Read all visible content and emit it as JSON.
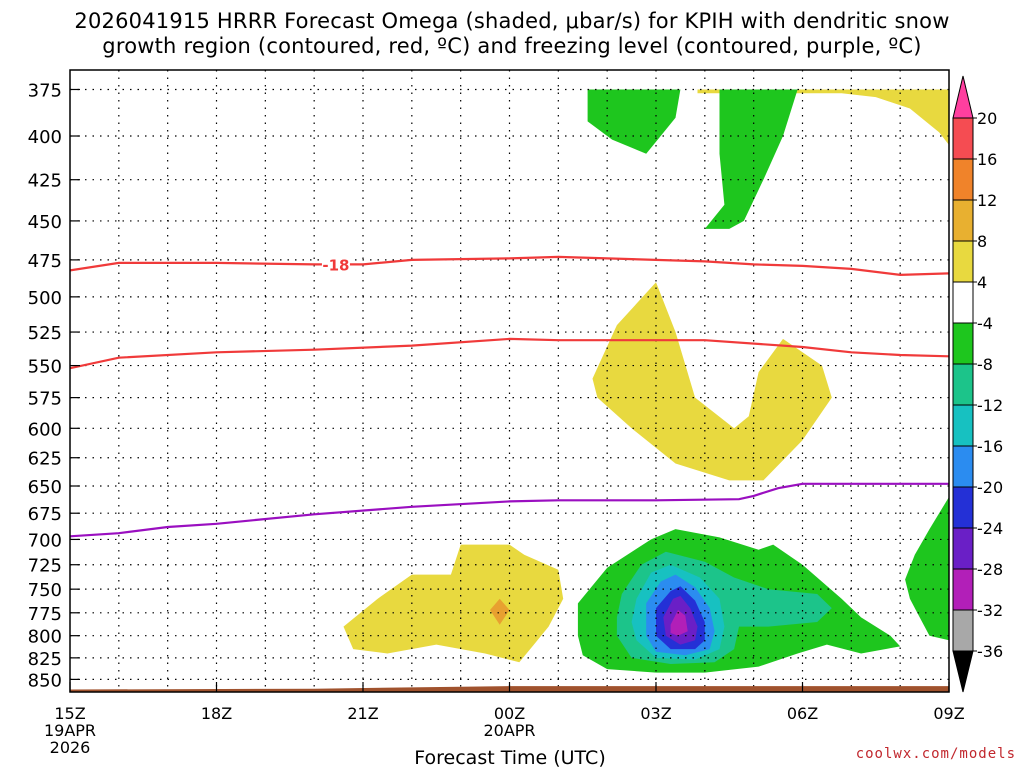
{
  "title_line1": "2026041915 HRRR Forecast Omega (shaded, μbar/s) for KPIH with dendritic snow",
  "title_line2": "growth region (contoured, red, ºC) and freezing level (contoured, purple, ºC)",
  "credit": "coolwx.com/models",
  "chart_data": {
    "type": "area",
    "xlabel": "Forecast Time (UTC)",
    "ylabel": "",
    "x_ticks": [
      {
        "label": "15Z",
        "sub": [
          "19APR",
          "2026"
        ],
        "hour": 15
      },
      {
        "label": "18Z",
        "sub": [],
        "hour": 18
      },
      {
        "label": "21Z",
        "sub": [],
        "hour": 21
      },
      {
        "label": "00Z",
        "sub": [
          "20APR"
        ],
        "hour": 24
      },
      {
        "label": "03Z",
        "sub": [],
        "hour": 27
      },
      {
        "label": "06Z",
        "sub": [],
        "hour": 30
      },
      {
        "label": "09Z",
        "sub": [],
        "hour": 33
      }
    ],
    "xlim": [
      15,
      33
    ],
    "y_ticks": [
      375,
      400,
      425,
      450,
      475,
      500,
      525,
      550,
      575,
      600,
      625,
      650,
      675,
      700,
      725,
      750,
      775,
      800,
      825,
      850
    ],
    "ylim": [
      365,
      865
    ],
    "y_scale": "log-pressure",
    "grid": true,
    "colorbar": {
      "labels": [
        "20",
        "16",
        "12",
        "8",
        "4",
        "-4",
        "-8",
        "-12",
        "-16",
        "-20",
        "-24",
        "-28",
        "-32",
        "-36"
      ],
      "colors": [
        "#ff3f9f",
        "#f54c52",
        "#f0832a",
        "#e8b030",
        "#e8d93f",
        "#ffffff",
        "#1ec61e",
        "#1cc48a",
        "#17c1c1",
        "#2b8cf0",
        "#2430d6",
        "#6a1fc6",
        "#b21fb8",
        "#a8a8a8",
        "#000000"
      ]
    },
    "shaded": [
      {
        "level": 4,
        "color": "#e8d93f",
        "region": [
          [
            27.85,
            375
          ],
          [
            33,
            375
          ],
          [
            33,
            405
          ],
          [
            32.8,
            398
          ],
          [
            32.2,
            385
          ],
          [
            31.5,
            379
          ],
          [
            30.8,
            377
          ],
          [
            29.8,
            377
          ],
          [
            28.9,
            377
          ],
          [
            27.85,
            377
          ]
        ]
      },
      {
        "level": -4,
        "color": "#1ec61e",
        "region": [
          [
            25.6,
            375
          ],
          [
            27.5,
            375
          ],
          [
            27.4,
            390
          ],
          [
            26.8,
            410
          ],
          [
            26.1,
            402
          ],
          [
            25.6,
            392
          ]
        ]
      },
      {
        "level": -4,
        "color": "#1ec61e",
        "region": [
          [
            28.3,
            375
          ],
          [
            29.9,
            375
          ],
          [
            29.6,
            400
          ],
          [
            29.2,
            425
          ],
          [
            28.8,
            450
          ],
          [
            28.5,
            455
          ],
          [
            28.0,
            455
          ],
          [
            28.4,
            440
          ],
          [
            28.3,
            410
          ]
        ]
      },
      {
        "level": 4,
        "color": "#e8d93f",
        "region": [
          [
            25.7,
            560
          ],
          [
            26.2,
            520
          ],
          [
            27.0,
            490
          ],
          [
            27.4,
            525
          ],
          [
            27.8,
            575
          ],
          [
            28.6,
            600
          ],
          [
            28.9,
            590
          ],
          [
            29.1,
            555
          ],
          [
            29.6,
            530
          ],
          [
            30.4,
            550
          ],
          [
            30.6,
            575
          ],
          [
            30.0,
            610
          ],
          [
            29.2,
            645
          ],
          [
            28.5,
            645
          ],
          [
            27.4,
            630
          ],
          [
            26.5,
            600
          ],
          [
            25.8,
            575
          ]
        ]
      },
      {
        "level": 4,
        "color": "#e8d93f",
        "region": [
          [
            20.6,
            790
          ],
          [
            21.3,
            760
          ],
          [
            22.0,
            735
          ],
          [
            22.8,
            735
          ],
          [
            23.0,
            705
          ],
          [
            24.0,
            705
          ],
          [
            24.3,
            715
          ],
          [
            25.0,
            730
          ],
          [
            25.1,
            760
          ],
          [
            24.8,
            790
          ],
          [
            24.5,
            810
          ],
          [
            24.2,
            830
          ],
          [
            23.5,
            820
          ],
          [
            22.5,
            810
          ],
          [
            21.5,
            820
          ],
          [
            20.8,
            815
          ]
        ]
      },
      {
        "level": 8,
        "color": "#e8a030",
        "region": [
          [
            23.8,
            760
          ],
          [
            24.0,
            772
          ],
          [
            23.8,
            788
          ],
          [
            23.6,
            772
          ]
        ]
      },
      {
        "level": -4,
        "color": "#1ec61e",
        "region": [
          [
            25.4,
            765
          ],
          [
            26.0,
            728
          ],
          [
            26.9,
            700
          ],
          [
            27.4,
            690
          ],
          [
            28.3,
            698
          ],
          [
            29.1,
            710
          ],
          [
            29.4,
            705
          ],
          [
            30.0,
            725
          ],
          [
            30.8,
            760
          ],
          [
            31.2,
            780
          ],
          [
            31.8,
            800
          ],
          [
            32.0,
            812
          ],
          [
            31.2,
            820
          ],
          [
            30.5,
            810
          ],
          [
            29.9,
            820
          ],
          [
            29.1,
            835
          ],
          [
            28.0,
            842
          ],
          [
            27.0,
            842
          ],
          [
            26.0,
            838
          ],
          [
            25.5,
            822
          ],
          [
            25.4,
            800
          ]
        ]
      },
      {
        "level": -8,
        "color": "#1cc48a",
        "region": [
          [
            26.3,
            755
          ],
          [
            26.7,
            725
          ],
          [
            27.2,
            712
          ],
          [
            28.0,
            722
          ],
          [
            28.6,
            738
          ],
          [
            29.3,
            750
          ],
          [
            30.3,
            755
          ],
          [
            30.6,
            770
          ],
          [
            30.3,
            785
          ],
          [
            29.3,
            790
          ],
          [
            28.7,
            790
          ],
          [
            28.6,
            815
          ],
          [
            28.2,
            830
          ],
          [
            27.3,
            832
          ],
          [
            26.5,
            825
          ],
          [
            26.2,
            800
          ],
          [
            26.2,
            780
          ]
        ]
      },
      {
        "level": -12,
        "color": "#17c1c1",
        "region": [
          [
            26.6,
            760
          ],
          [
            26.9,
            733
          ],
          [
            27.3,
            725
          ],
          [
            27.9,
            738
          ],
          [
            28.3,
            760
          ],
          [
            28.4,
            790
          ],
          [
            28.3,
            815
          ],
          [
            27.8,
            827
          ],
          [
            27.0,
            825
          ],
          [
            26.6,
            805
          ],
          [
            26.5,
            785
          ]
        ]
      },
      {
        "level": -16,
        "color": "#2b8cf0",
        "region": [
          [
            26.8,
            765
          ],
          [
            27.1,
            742
          ],
          [
            27.4,
            735
          ],
          [
            27.8,
            748
          ],
          [
            28.1,
            770
          ],
          [
            28.2,
            795
          ],
          [
            28.1,
            815
          ],
          [
            27.6,
            822
          ],
          [
            27.0,
            818
          ],
          [
            26.8,
            800
          ]
        ]
      },
      {
        "level": -20,
        "color": "#2430d6",
        "region": [
          [
            27.0,
            770
          ],
          [
            27.3,
            752
          ],
          [
            27.5,
            747
          ],
          [
            27.8,
            762
          ],
          [
            28.0,
            785
          ],
          [
            28.0,
            805
          ],
          [
            27.8,
            815
          ],
          [
            27.3,
            815
          ],
          [
            27.0,
            800
          ]
        ]
      },
      {
        "level": -24,
        "color": "#6a1fc6",
        "region": [
          [
            27.15,
            780
          ],
          [
            27.35,
            760
          ],
          [
            27.5,
            757
          ],
          [
            27.7,
            770
          ],
          [
            27.85,
            790
          ],
          [
            27.8,
            805
          ],
          [
            27.5,
            810
          ],
          [
            27.2,
            800
          ]
        ]
      },
      {
        "level": -28,
        "color": "#b21fb8",
        "region": [
          [
            27.3,
            788
          ],
          [
            27.45,
            772
          ],
          [
            27.6,
            778
          ],
          [
            27.65,
            795
          ],
          [
            27.45,
            800
          ],
          [
            27.3,
            797
          ]
        ]
      },
      {
        "level": -4,
        "color": "#1ec61e",
        "region": [
          [
            33,
            660
          ],
          [
            33,
            805
          ],
          [
            32.6,
            800
          ],
          [
            32.4,
            780
          ],
          [
            32.2,
            760
          ],
          [
            32.1,
            740
          ],
          [
            32.3,
            715
          ],
          [
            32.6,
            690
          ]
        ]
      }
    ],
    "contours": [
      {
        "name": "-18",
        "color": "#f03a3a",
        "points": [
          [
            15,
            482
          ],
          [
            16,
            477
          ],
          [
            18,
            477
          ],
          [
            20,
            478
          ],
          [
            21,
            478
          ],
          [
            22,
            475
          ],
          [
            24,
            474
          ],
          [
            25,
            473
          ],
          [
            26,
            474
          ],
          [
            28,
            476
          ],
          [
            29,
            478
          ],
          [
            30,
            479
          ],
          [
            31,
            481
          ],
          [
            32,
            485
          ],
          [
            33,
            484
          ]
        ],
        "label_at": [
          20.2,
          478
        ]
      },
      {
        "name": "",
        "color": "#f03a3a",
        "points": [
          [
            15,
            552
          ],
          [
            16,
            544
          ],
          [
            18,
            540
          ],
          [
            20,
            538
          ],
          [
            22,
            535
          ],
          [
            24,
            530
          ],
          [
            25,
            531
          ],
          [
            26,
            531
          ],
          [
            28,
            531
          ],
          [
            30,
            536
          ],
          [
            31,
            540
          ],
          [
            32,
            542
          ],
          [
            33,
            543
          ]
        ]
      },
      {
        "name": "",
        "color": "#9a0fc0",
        "points": [
          [
            15,
            697
          ],
          [
            16,
            694
          ],
          [
            17,
            688
          ],
          [
            18,
            685
          ],
          [
            20,
            676
          ],
          [
            22,
            669
          ],
          [
            24,
            664
          ],
          [
            25,
            663
          ],
          [
            27,
            663
          ],
          [
            28.7,
            662
          ],
          [
            29,
            659
          ],
          [
            29.5,
            652
          ],
          [
            30,
            648
          ],
          [
            31,
            648
          ],
          [
            33,
            648
          ]
        ]
      }
    ],
    "ground": {
      "color": "#a0522d",
      "points": [
        [
          15,
          862
        ],
        [
          20,
          861
        ],
        [
          24,
          858
        ],
        [
          33,
          858
        ]
      ]
    }
  }
}
